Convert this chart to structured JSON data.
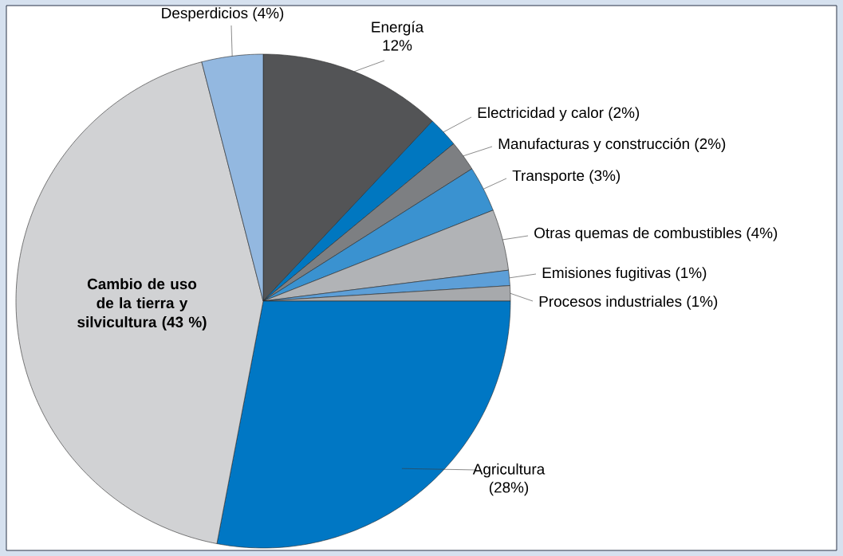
{
  "chart_data": {
    "type": "pie",
    "categories": [
      "Energía",
      "Electricidad y calor",
      "Manufacturas y construcción",
      "Transporte",
      "Otras quemas de combustibles",
      "Emisiones fugitivas",
      "Procesos industriales",
      "Agricultura",
      "Cambio de uso de la tierra y silvicultura",
      "Desperdicios"
    ],
    "values": [
      12,
      2,
      2,
      3,
      4,
      1,
      1,
      28,
      43,
      4
    ],
    "value_labels": [
      "12%",
      "(2%)",
      "(2%)",
      "(3%)",
      "(4%)",
      "(1%)",
      "(1%)",
      "(28%)",
      "(43 %)",
      "(4%)"
    ],
    "colors": [
      "#535456",
      "#0077c0",
      "#7d7f82",
      "#3a92d0",
      "#b1b3b6",
      "#5d9fd8",
      "#a7a9ac",
      "#0077c4",
      "#d1d2d4",
      "#93b8e0"
    ]
  }
}
